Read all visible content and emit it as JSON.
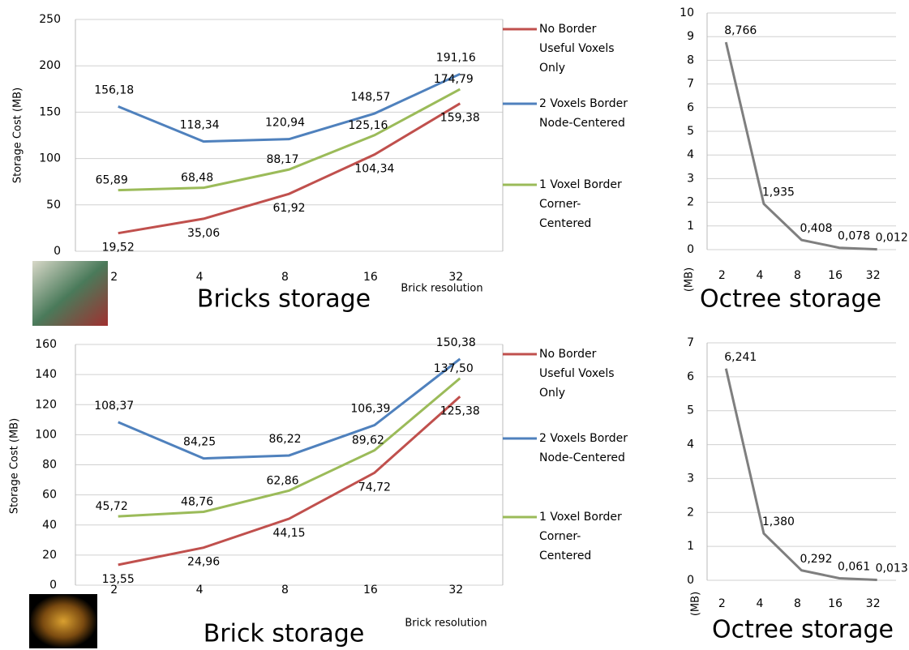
{
  "chart_data": [
    {
      "type": "line",
      "title": "Bricks storage",
      "x_label": "Brick resolution",
      "y_label": "Storage Cost (MB)",
      "categories": [
        "2",
        "4",
        "8",
        "16",
        "32"
      ],
      "ylim": [
        0,
        250
      ],
      "yticks": [
        0,
        50,
        100,
        150,
        200,
        250
      ],
      "grid": true,
      "legend": "right",
      "series": [
        {
          "name": "No Border Useful Voxels Only",
          "color": "#c0504d",
          "values": [
            19.52,
            35.06,
            61.92,
            104.34,
            159.38
          ],
          "value_labels": [
            "19,52",
            "35,06",
            "61,92",
            "104,34",
            "159,38"
          ]
        },
        {
          "name": "2 Voxels Border Node-Centered",
          "color": "#4f81bd",
          "values": [
            156.18,
            118.34,
            120.94,
            148.57,
            191.16
          ],
          "value_labels": [
            "156,18",
            "118,34",
            "120,94",
            "148,57",
            "191,16"
          ]
        },
        {
          "name": "1 Voxel Border Corner-Centered",
          "color": "#9bbb59",
          "values": [
            65.89,
            68.48,
            88.17,
            125.16,
            174.79
          ],
          "value_labels": [
            "65,89",
            "68,48",
            "88,17",
            "125,16",
            "174,79"
          ]
        }
      ]
    },
    {
      "type": "line",
      "title": "Octree storage",
      "y_label": "(MB)",
      "categories": [
        "2",
        "4",
        "8",
        "16",
        "32"
      ],
      "ylim": [
        0,
        10
      ],
      "yticks": [
        0,
        1,
        2,
        3,
        4,
        5,
        6,
        7,
        8,
        9,
        10
      ],
      "grid": true,
      "color": "#7f7f7f",
      "values": [
        8.766,
        1.935,
        0.408,
        0.078,
        0.012
      ],
      "value_labels": [
        "8,766",
        "1,935",
        "0,408",
        "0,078",
        "0,012"
      ]
    },
    {
      "type": "line",
      "title": "Brick storage",
      "x_label": "Brick resolution",
      "y_label": "Storage Cost (MB)",
      "categories": [
        "2",
        "4",
        "8",
        "16",
        "32"
      ],
      "ylim": [
        0,
        160
      ],
      "yticks": [
        0,
        20,
        40,
        60,
        80,
        100,
        120,
        140,
        160
      ],
      "grid": true,
      "legend": "right",
      "series": [
        {
          "name": "No Border Useful Voxels Only",
          "color": "#c0504d",
          "values": [
            13.55,
            24.96,
            44.15,
            74.72,
            125.38
          ],
          "value_labels": [
            "13,55",
            "24,96",
            "44,15",
            "74,72",
            "125,38"
          ]
        },
        {
          "name": "2 Voxels Border Node-Centered",
          "color": "#4f81bd",
          "values": [
            108.37,
            84.25,
            86.22,
            106.39,
            150.38
          ],
          "value_labels": [
            "108,37",
            "84,25",
            "86,22",
            "106,39",
            "150,38"
          ]
        },
        {
          "name": "1 Voxel Border Corner-Centered",
          "color": "#9bbb59",
          "values": [
            45.72,
            48.76,
            62.86,
            89.62,
            137.5
          ],
          "value_labels": [
            "45,72",
            "48,76",
            "62,86",
            "89,62",
            "137,50"
          ]
        }
      ]
    },
    {
      "type": "line",
      "title": "Octree storage",
      "y_label": "(MB)",
      "categories": [
        "2",
        "4",
        "8",
        "16",
        "32"
      ],
      "ylim": [
        0,
        7
      ],
      "yticks": [
        0,
        1,
        2,
        3,
        4,
        5,
        6,
        7
      ],
      "grid": true,
      "color": "#7f7f7f",
      "values": [
        6.241,
        1.38,
        0.292,
        0.061,
        0.013
      ],
      "value_labels": [
        "6,241",
        "1,380",
        "0,292",
        "0,061",
        "0,013"
      ]
    }
  ]
}
